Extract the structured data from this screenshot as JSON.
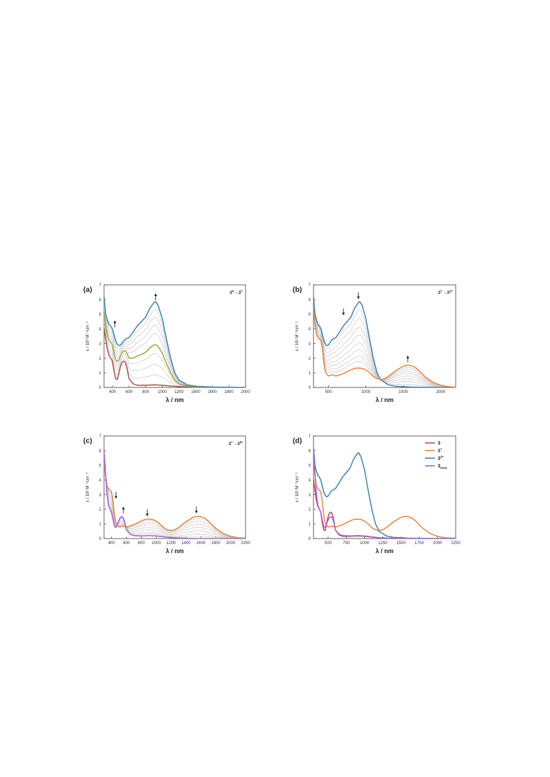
{
  "colors": {
    "neutral": "#b04a4a",
    "cation": "#e8843a",
    "dication": "#3a82ad",
    "reox": "#a85ad8",
    "intermediate": "#a0a03a",
    "grey": "#c4c4c4",
    "axis": "#3a3a3a"
  },
  "chart_data": [
    {
      "type": "line",
      "panel_label": "(a)",
      "annotation": {
        "base": "3",
        "sup1": "0",
        "arrow": "→",
        "base2": "3",
        "sup2": "+"
      },
      "ylabel": "ε / 10³ M⁻¹cm⁻¹",
      "xlabel": "λ / nm",
      "xlim": [
        300,
        2000
      ],
      "ylim": [
        0,
        7
      ],
      "xticks": [
        400,
        600,
        800,
        1000,
        1200,
        1400,
        1600,
        1800,
        2000
      ],
      "yticks": [
        0,
        1,
        2,
        3,
        4,
        5,
        6,
        7
      ],
      "arrows": [
        {
          "x": 430,
          "y": 4.3,
          "dir": "up"
        },
        {
          "x": 920,
          "y": 6.15,
          "dir": "up"
        }
      ],
      "series": [
        {
          "role": "start",
          "color_key": "neutral",
          "x": [
            300,
            320,
            340,
            360,
            380,
            400,
            420,
            440,
            460,
            480,
            500,
            520,
            540,
            560,
            580,
            600,
            650,
            700,
            800,
            900,
            1000,
            1100,
            1200,
            1400,
            1600,
            2000
          ],
          "y": [
            4.0,
            3.3,
            2.6,
            2.2,
            2.0,
            1.8,
            1.1,
            0.6,
            0.55,
            1.0,
            1.5,
            1.75,
            1.8,
            1.65,
            1.2,
            0.6,
            0.25,
            0.15,
            0.15,
            0.18,
            0.15,
            0.1,
            0.05,
            0.02,
            0.0,
            0.0
          ]
        },
        {
          "role": "end",
          "color_key": "dication",
          "x": [
            300,
            320,
            340,
            360,
            380,
            400,
            420,
            440,
            460,
            480,
            500,
            520,
            540,
            560,
            580,
            600,
            650,
            700,
            750,
            800,
            850,
            900,
            920,
            950,
            1000,
            1050,
            1100,
            1150,
            1200,
            1300,
            1400,
            1600,
            2000
          ],
          "y": [
            6.2,
            5.0,
            4.6,
            4.3,
            4.2,
            4.0,
            3.6,
            3.2,
            2.95,
            2.85,
            2.9,
            3.05,
            3.2,
            3.3,
            3.35,
            3.4,
            3.8,
            4.2,
            4.5,
            4.8,
            5.4,
            5.8,
            5.85,
            5.6,
            4.7,
            3.3,
            2.0,
            1.0,
            0.5,
            0.18,
            0.08,
            0.03,
            0.0
          ]
        },
        {
          "role": "intermediate",
          "color_key": "intermediate",
          "x": [
            300,
            320,
            340,
            360,
            380,
            400,
            420,
            440,
            460,
            480,
            500,
            520,
            540,
            560,
            580,
            600,
            650,
            700,
            750,
            800,
            850,
            900,
            920,
            950,
            1000,
            1050,
            1100,
            1150,
            1200,
            1300,
            1400,
            1600,
            2000
          ],
          "y": [
            5.1,
            4.15,
            3.6,
            3.25,
            3.1,
            2.9,
            2.35,
            1.9,
            1.75,
            1.92,
            2.2,
            2.4,
            2.5,
            2.48,
            2.28,
            2.0,
            2.0,
            2.15,
            2.25,
            2.4,
            2.7,
            2.9,
            2.92,
            2.8,
            2.35,
            1.65,
            1.0,
            0.5,
            0.25,
            0.09,
            0.04,
            0.01,
            0.0
          ]
        }
      ],
      "grey_steps": [
        0.12,
        0.25,
        0.38,
        0.62,
        0.72,
        0.82,
        0.91
      ]
    },
    {
      "type": "line",
      "panel_label": "(b)",
      "annotation": {
        "base": "3",
        "sup1": "+",
        "arrow": "→",
        "base2": "3",
        "sup2": "2+"
      },
      "ylabel": "ε / 10³ M⁻¹cm⁻¹",
      "xlabel": "λ / nm",
      "xlim": [
        300,
        2200
      ],
      "ylim": [
        0,
        7
      ],
      "xticks": [
        500,
        1000,
        1500,
        2000
      ],
      "yticks": [
        0,
        1,
        2,
        3,
        4,
        5,
        6,
        7
      ],
      "arrows": [
        {
          "x": 700,
          "y": 5.2,
          "dir": "down"
        },
        {
          "x": 900,
          "y": 6.3,
          "dir": "down"
        },
        {
          "x": 1560,
          "y": 1.9,
          "dir": "up"
        }
      ],
      "series": [
        {
          "role": "start",
          "color_key": "dication",
          "x": [
            300,
            320,
            340,
            360,
            380,
            400,
            420,
            440,
            460,
            480,
            500,
            520,
            540,
            560,
            580,
            600,
            650,
            700,
            750,
            800,
            850,
            900,
            920,
            950,
            1000,
            1050,
            1100,
            1150,
            1200,
            1300,
            1400,
            1600,
            1800,
            2000,
            2200
          ],
          "y": [
            6.2,
            5.0,
            4.6,
            4.3,
            4.2,
            4.0,
            3.6,
            3.2,
            2.95,
            2.85,
            2.9,
            3.05,
            3.2,
            3.3,
            3.35,
            3.4,
            3.8,
            4.2,
            4.5,
            4.8,
            5.4,
            5.8,
            5.85,
            5.6,
            4.7,
            3.3,
            2.0,
            1.0,
            0.5,
            0.18,
            0.08,
            0.03,
            0.01,
            0.0,
            0.0
          ]
        },
        {
          "role": "end",
          "color_key": "cation",
          "x": [
            300,
            320,
            340,
            360,
            380,
            400,
            420,
            440,
            460,
            480,
            500,
            520,
            540,
            560,
            580,
            600,
            700,
            800,
            850,
            900,
            950,
            1000,
            1050,
            1100,
            1150,
            1200,
            1250,
            1300,
            1350,
            1400,
            1450,
            1500,
            1550,
            1600,
            1650,
            1700,
            1750,
            1800,
            1900,
            2000,
            2100,
            2200
          ],
          "y": [
            5.4,
            4.3,
            3.6,
            3.4,
            3.3,
            3.2,
            2.6,
            1.6,
            1.05,
            0.9,
            0.8,
            0.8,
            0.85,
            0.85,
            0.82,
            0.78,
            0.95,
            1.2,
            1.3,
            1.33,
            1.3,
            1.2,
            1.0,
            0.75,
            0.6,
            0.55,
            0.6,
            0.75,
            0.95,
            1.15,
            1.3,
            1.45,
            1.52,
            1.5,
            1.4,
            1.2,
            0.95,
            0.7,
            0.35,
            0.15,
            0.06,
            0.02
          ]
        }
      ],
      "grey_steps": [
        0.12,
        0.25,
        0.38,
        0.5,
        0.62,
        0.72,
        0.82,
        0.9
      ]
    },
    {
      "type": "line",
      "panel_label": "(c)",
      "annotation": {
        "base": "3",
        "sup1": "+",
        "arrow": "→",
        "base2": "3",
        "sup2": "0r"
      },
      "ylabel": "ε / 10³ M⁻¹cm⁻¹",
      "xlabel": "λ / nm",
      "xlim": [
        300,
        2200
      ],
      "ylim": [
        0,
        7
      ],
      "xticks": [
        400,
        600,
        800,
        1000,
        1200,
        1400,
        1600,
        1800,
        2000,
        2200
      ],
      "yticks": [
        0,
        1,
        2,
        3,
        4,
        5,
        6,
        7
      ],
      "arrows": [
        {
          "x": 460,
          "y": 3.0,
          "dir": "down"
        },
        {
          "x": 560,
          "y": 1.9,
          "dir": "up"
        },
        {
          "x": 880,
          "y": 1.8,
          "dir": "down"
        },
        {
          "x": 1540,
          "y": 2.0,
          "dir": "down"
        }
      ],
      "series": [
        {
          "role": "start",
          "color_key": "cation",
          "x": [
            300,
            320,
            340,
            360,
            380,
            400,
            420,
            440,
            460,
            480,
            500,
            520,
            540,
            560,
            580,
            600,
            700,
            800,
            850,
            900,
            950,
            1000,
            1050,
            1100,
            1150,
            1200,
            1250,
            1300,
            1350,
            1400,
            1450,
            1500,
            1550,
            1600,
            1650,
            1700,
            1750,
            1800,
            1900,
            2000,
            2100,
            2200
          ],
          "y": [
            5.4,
            4.3,
            3.6,
            3.4,
            3.3,
            3.2,
            2.6,
            1.6,
            1.05,
            0.9,
            0.8,
            0.8,
            0.85,
            0.85,
            0.82,
            0.78,
            0.95,
            1.2,
            1.3,
            1.33,
            1.3,
            1.2,
            1.0,
            0.75,
            0.6,
            0.55,
            0.6,
            0.75,
            0.95,
            1.15,
            1.3,
            1.45,
            1.52,
            1.5,
            1.4,
            1.2,
            0.95,
            0.7,
            0.35,
            0.15,
            0.06,
            0.02
          ]
        },
        {
          "role": "end",
          "color_key": "reox",
          "x": [
            300,
            320,
            340,
            360,
            380,
            400,
            420,
            440,
            460,
            480,
            500,
            520,
            540,
            560,
            580,
            600,
            650,
            700,
            800,
            900,
            1000,
            1100,
            1200,
            1400,
            1600,
            2000,
            2200
          ],
          "y": [
            6.0,
            4.5,
            3.0,
            2.3,
            2.0,
            1.8,
            1.3,
            0.85,
            0.75,
            1.0,
            1.25,
            1.45,
            1.5,
            1.4,
            1.1,
            0.6,
            0.3,
            0.2,
            0.18,
            0.2,
            0.18,
            0.12,
            0.06,
            0.02,
            0.0,
            0.0,
            0.0
          ]
        }
      ],
      "grey_steps": [
        0.1,
        0.22,
        0.35,
        0.5,
        0.65,
        0.8,
        0.9
      ]
    },
    {
      "type": "line",
      "panel_label": "(d)",
      "ylabel": "ε / 10³ M⁻¹cm⁻¹",
      "xlabel": "λ / nm",
      "xlim": [
        300,
        2250
      ],
      "ylim": [
        0,
        7
      ],
      "xticks": [
        500,
        750,
        1000,
        1250,
        1500,
        1750,
        2000,
        2250
      ],
      "yticks": [
        0,
        1,
        2,
        3,
        4,
        5,
        6,
        7
      ],
      "legend": [
        {
          "base": "3",
          "sup": "",
          "sub": "",
          "color_key": "neutral"
        },
        {
          "base": "3",
          "sup": "+",
          "sub": "",
          "color_key": "cation"
        },
        {
          "base": "3",
          "sup": "2+",
          "sub": "",
          "color_key": "dication"
        },
        {
          "base": "3",
          "sup": "",
          "sub": "reox.",
          "color_key": "reox"
        }
      ],
      "legend_position": "top-right",
      "series": [
        {
          "role": "neutral",
          "color_key": "neutral",
          "x": [
            300,
            320,
            340,
            360,
            380,
            400,
            420,
            440,
            460,
            480,
            500,
            520,
            540,
            560,
            580,
            600,
            650,
            700,
            800,
            900,
            1000,
            1100,
            1200,
            1400,
            1600,
            2000,
            2250
          ],
          "y": [
            4.0,
            3.3,
            2.6,
            2.2,
            2.0,
            1.8,
            1.1,
            0.6,
            0.55,
            1.0,
            1.5,
            1.75,
            1.8,
            1.65,
            1.2,
            0.6,
            0.25,
            0.15,
            0.15,
            0.18,
            0.15,
            0.1,
            0.05,
            0.02,
            0.0,
            0.0,
            0.0
          ]
        },
        {
          "role": "cation",
          "color_key": "cation",
          "x": [
            300,
            320,
            340,
            360,
            380,
            400,
            420,
            440,
            460,
            480,
            500,
            520,
            540,
            560,
            580,
            600,
            700,
            800,
            850,
            900,
            950,
            1000,
            1050,
            1100,
            1150,
            1200,
            1250,
            1300,
            1350,
            1400,
            1450,
            1500,
            1550,
            1600,
            1650,
            1700,
            1750,
            1800,
            1900,
            2000,
            2100,
            2250
          ],
          "y": [
            5.4,
            4.3,
            3.6,
            3.4,
            3.3,
            3.2,
            2.6,
            1.6,
            1.05,
            0.9,
            0.8,
            0.8,
            0.85,
            0.85,
            0.82,
            0.78,
            0.95,
            1.2,
            1.3,
            1.33,
            1.3,
            1.2,
            1.0,
            0.75,
            0.6,
            0.55,
            0.6,
            0.75,
            0.95,
            1.15,
            1.3,
            1.45,
            1.52,
            1.5,
            1.4,
            1.2,
            0.95,
            0.7,
            0.35,
            0.15,
            0.06,
            0.02
          ]
        },
        {
          "role": "dication",
          "color_key": "dication",
          "x": [
            300,
            320,
            340,
            360,
            380,
            400,
            420,
            440,
            460,
            480,
            500,
            520,
            540,
            560,
            580,
            600,
            650,
            700,
            750,
            800,
            850,
            900,
            920,
            950,
            1000,
            1050,
            1100,
            1150,
            1200,
            1300,
            1400,
            1600,
            2000,
            2250
          ],
          "y": [
            6.2,
            5.0,
            4.6,
            4.3,
            4.2,
            4.0,
            3.6,
            3.2,
            2.95,
            2.85,
            2.9,
            3.05,
            3.2,
            3.3,
            3.35,
            3.4,
            3.8,
            4.2,
            4.5,
            4.8,
            5.4,
            5.8,
            5.85,
            5.6,
            4.7,
            3.3,
            2.0,
            1.0,
            0.5,
            0.18,
            0.08,
            0.03,
            0.0,
            0.0
          ]
        },
        {
          "role": "reox",
          "color_key": "reox",
          "x": [
            300,
            320,
            340,
            360,
            380,
            400,
            420,
            440,
            460,
            480,
            500,
            520,
            540,
            560,
            580,
            600,
            650,
            700,
            800,
            900,
            1000,
            1100,
            1200,
            1400,
            1600,
            2000,
            2250
          ],
          "y": [
            6.0,
            4.5,
            3.0,
            2.3,
            2.0,
            1.8,
            1.3,
            0.85,
            0.75,
            1.0,
            1.25,
            1.45,
            1.5,
            1.4,
            1.1,
            0.6,
            0.3,
            0.2,
            0.18,
            0.2,
            0.18,
            0.12,
            0.06,
            0.02,
            0.0,
            0.0,
            0.0
          ]
        }
      ],
      "grey_steps": []
    }
  ]
}
